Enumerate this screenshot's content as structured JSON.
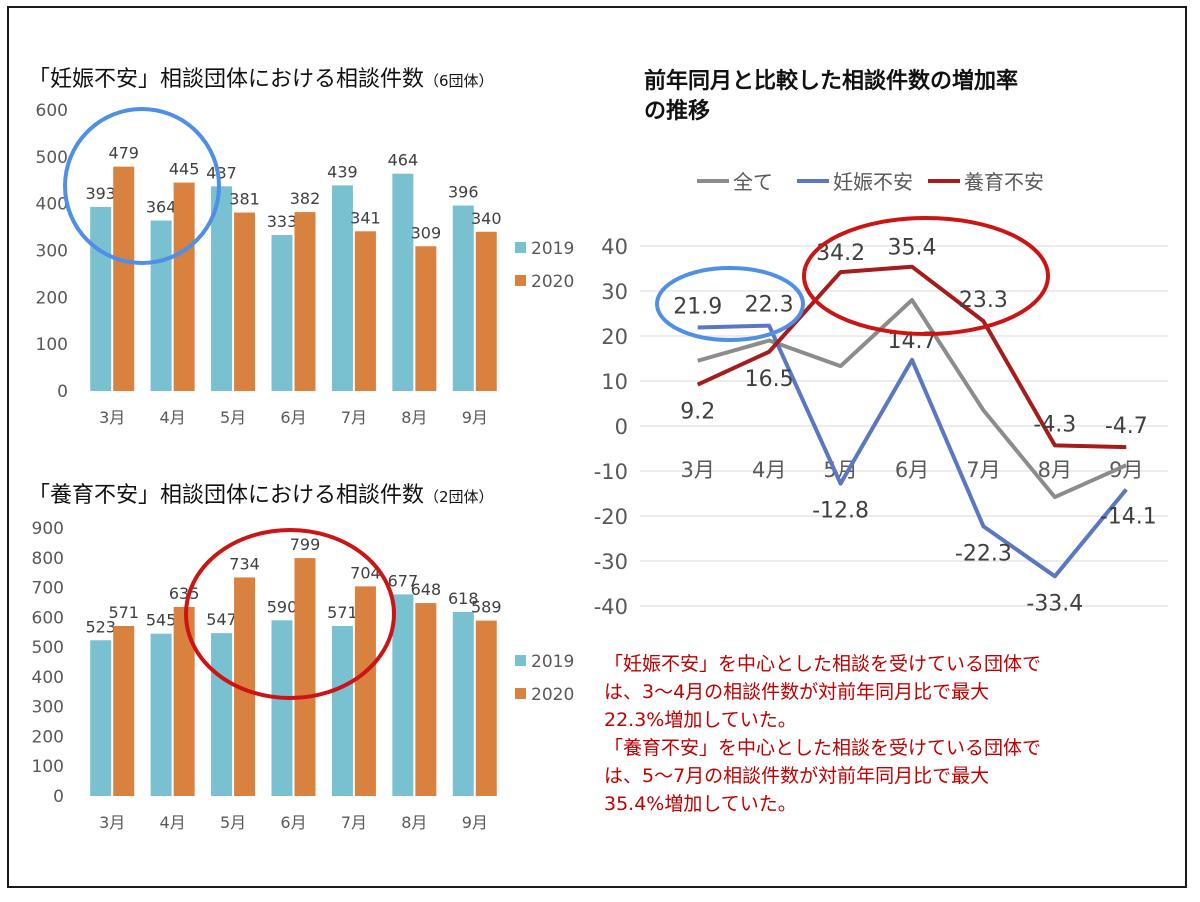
{
  "chart_data": [
    {
      "type": "bar",
      "title": "「妊娠不安」相談団体における相談件数",
      "subtitle": "（6団体）",
      "categories": [
        "3月",
        "4月",
        "5月",
        "6月",
        "7月",
        "8月",
        "9月"
      ],
      "series": [
        {
          "name": "2019",
          "values": [
            393,
            364,
            437,
            333,
            439,
            464,
            396
          ]
        },
        {
          "name": "2020",
          "values": [
            479,
            445,
            381,
            382,
            341,
            309,
            340
          ]
        }
      ],
      "ylim": [
        0,
        600
      ],
      "yticks": [
        0,
        100,
        200,
        300,
        400,
        500,
        600
      ],
      "legend": "right",
      "annotation": "blue circle around 3月–4月"
    },
    {
      "type": "bar",
      "title": "「養育不安」相談団体における相談件数",
      "subtitle": "（2団体）",
      "categories": [
        "3月",
        "4月",
        "5月",
        "6月",
        "7月",
        "8月",
        "9月"
      ],
      "series": [
        {
          "name": "2019",
          "values": [
            523,
            545,
            547,
            590,
            571,
            677,
            618
          ]
        },
        {
          "name": "2020",
          "values": [
            571,
            635,
            734,
            799,
            704,
            648,
            589
          ]
        }
      ],
      "ylim": [
        0,
        900
      ],
      "yticks": [
        0,
        100,
        200,
        300,
        400,
        500,
        600,
        700,
        800,
        900
      ],
      "legend": "right",
      "annotation": "red circle around 5月–7月"
    },
    {
      "type": "line",
      "title": "前年同月と比較した相談件数の増加率の推移",
      "title_lines": [
        "前年同月と比較した相談件数の増加率",
        "の推移"
      ],
      "categories": [
        "3月",
        "4月",
        "5月",
        "6月",
        "7月",
        "8月",
        "9月"
      ],
      "series": [
        {
          "name": "全て",
          "values": [
            14.5,
            19.0,
            13.3,
            28.0,
            3.5,
            -15.8,
            -8.7
          ]
        },
        {
          "name": "妊娠不安",
          "values": [
            21.9,
            22.3,
            -12.8,
            14.7,
            -22.3,
            -33.4,
            -14.1
          ]
        },
        {
          "name": "養育不安",
          "values": [
            9.2,
            16.5,
            34.2,
            35.4,
            23.3,
            -4.3,
            -4.7
          ]
        }
      ],
      "labeled_series": {
        "妊娠不安": [
          "21.9",
          "22.3",
          "-12.8",
          "14.7",
          "-22.3",
          "-33.4",
          "-14.1"
        ],
        "養育不安": [
          "9.2",
          "16.5",
          "34.2",
          "35.4",
          "23.3",
          "-4.3",
          "-4.7"
        ]
      },
      "ylim": [
        -40,
        40
      ],
      "yticks": [
        -40,
        -30,
        -20,
        -10,
        0,
        10,
        20,
        30,
        40
      ],
      "legend": "top",
      "annotations": [
        "blue ellipse around 3月–4月 妊娠不安",
        "red ellipse around 5月–7月 養育不安"
      ]
    }
  ],
  "colors": {
    "bar2019": "#79c0d0",
    "bar2020": "#d9823f",
    "all": "#8c8c8c",
    "pregnancy": "#5b76c2",
    "childcare": "#a61c1c",
    "blueCircle": "#4f8fe6",
    "redCircle": "#cc1414",
    "note": "#c00000"
  },
  "note": {
    "lines": [
      "「妊娠不安」を中心とした相談を受けている団体で",
      "は、3～4月の相談件数が対前年同月比で最大",
      "22.3%増加していた。",
      "「養育不安」を中心とした相談を受けている団体で",
      "は、5～7月の相談件数が対前年同月比で最大",
      "35.4%増加していた。"
    ]
  }
}
